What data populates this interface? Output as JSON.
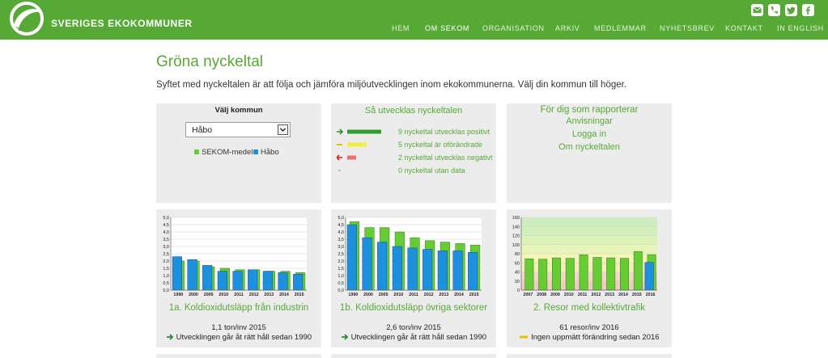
{
  "header": {
    "brand": "SVERIGES EKOKOMMUNER",
    "social": [
      "mail-icon",
      "phone-icon",
      "twitter-icon",
      "facebook-icon"
    ],
    "nav": [
      {
        "label": "HEM",
        "active": false
      },
      {
        "label": "OM SEKOM",
        "active": true
      },
      {
        "label": "ORGANISATION",
        "active": false
      },
      {
        "label": "ARKIV",
        "active": false
      },
      {
        "label": "MEDLEMMAR",
        "active": false
      },
      {
        "label": "NYHETSBREV",
        "active": false
      },
      {
        "label": "KONTAKT",
        "active": false
      },
      {
        "label": "IN ENGLISH",
        "active": false
      }
    ]
  },
  "main": {
    "title": "Gröna nyckeltal",
    "intro": "Syftet med nyckeltalen är att följa och jämföra miljöutvecklingen inom ekokommunerna. Välj din kommun till höger."
  },
  "kommun_panel": {
    "label": "Välj kommun",
    "selected": "Håbo",
    "legend_sekom": "SEKOM-medel",
    "legend_kommun": "Håbo"
  },
  "trend_panel": {
    "title": "Så utvecklas nyckeltalen",
    "rows": [
      {
        "text": "9 nyckeltal utvecklas positivt",
        "icon": "arrow-right-green-icon"
      },
      {
        "text": "5 nyckeltal är oförändrade",
        "icon": "dash-yellow-icon"
      },
      {
        "text": "2 nyckeltal utvecklas negativt",
        "icon": "arrow-left-red-icon"
      },
      {
        "text": "0 nyckeltal utan data",
        "icon": "dash-gray-icon"
      }
    ]
  },
  "report_panel": {
    "title": "För dig som rapporterar",
    "links": [
      "Anvisningar",
      "Logga in",
      "Om nyckeltalen"
    ]
  },
  "colors": {
    "brand_green": "#56a935",
    "sekom_bar": "#66cc33",
    "kommun_bar": "#1e90e0"
  },
  "charts": [
    {
      "title": "1a. Koldioxidutsläpp från industrin",
      "value": "1,1 ton/inv 2015",
      "trend_icon": "arrow-right-green-icon",
      "trend": "Utvecklingen går åt rätt håll sedan 1990",
      "chart_data": {
        "type": "bar",
        "categories": [
          "1990",
          "2000",
          "2005",
          "2010",
          "2011",
          "2012",
          "2013",
          "2014",
          "2015"
        ],
        "yticks": [
          "0,0",
          "0,5",
          "1,0",
          "1,5",
          "2,0",
          "2,5",
          "3,0",
          "3,5",
          "4,0",
          "4,5",
          "5,0"
        ],
        "ylim": [
          0,
          5
        ],
        "series": [
          {
            "name": "SEKOM-medel",
            "values": [
              2.0,
              2.0,
              1.6,
              1.5,
              1.4,
              1.4,
              1.3,
              1.3,
              1.2
            ]
          },
          {
            "name": "Håbo",
            "values": [
              2.3,
              2.1,
              1.7,
              1.3,
              1.3,
              1.4,
              1.3,
              1.2,
              1.1
            ]
          }
        ]
      }
    },
    {
      "title": "1b. Koldioxidutsläpp övriga sektorer",
      "value": "2,6 ton/inv 2015",
      "trend_icon": "arrow-right-green-icon",
      "trend": "Utvecklingen går åt rätt håll sedan 1990",
      "chart_data": {
        "type": "bar",
        "categories": [
          "1990",
          "2000",
          "2005",
          "2010",
          "2011",
          "2012",
          "2013",
          "2014",
          "2015"
        ],
        "yticks": [
          "0,0",
          "0,5",
          "1,0",
          "1,5",
          "2,0",
          "2,5",
          "3,0",
          "3,5",
          "4,0",
          "4,5",
          "5,0"
        ],
        "ylim": [
          0,
          5
        ],
        "series": [
          {
            "name": "SEKOM-medel",
            "values": [
              4.7,
              4.3,
              4.3,
              4.0,
              3.6,
              3.4,
              3.3,
              3.2,
              3.1
            ]
          },
          {
            "name": "Håbo",
            "values": [
              4.5,
              3.6,
              3.3,
              3.0,
              2.9,
              2.8,
              2.7,
              2.7,
              2.6
            ]
          }
        ]
      }
    },
    {
      "title": "2. Resor med kollektivtrafik",
      "value": "61 resor/inv 2016",
      "trend_icon": "dash-yellow-icon",
      "trend": "Ingen uppmätt förändring sedan 2016",
      "chart_data": {
        "type": "bar",
        "categories": [
          "2007",
          "2008",
          "2009",
          "2010",
          "2011",
          "2012",
          "2013",
          "2014",
          "2015",
          "2016"
        ],
        "yticks": [
          "0",
          "20",
          "40",
          "60",
          "80",
          "100",
          "120",
          "140",
          "160"
        ],
        "ylim": [
          0,
          160
        ],
        "series": [
          {
            "name": "SEKOM-medel",
            "values": [
              69,
              68,
              71,
              70,
              78,
              72,
              71,
              70,
              85,
              78
            ]
          },
          {
            "name": "Håbo",
            "values": [
              null,
              null,
              null,
              null,
              null,
              null,
              null,
              null,
              null,
              61
            ]
          }
        ],
        "background_bands": true
      }
    }
  ]
}
